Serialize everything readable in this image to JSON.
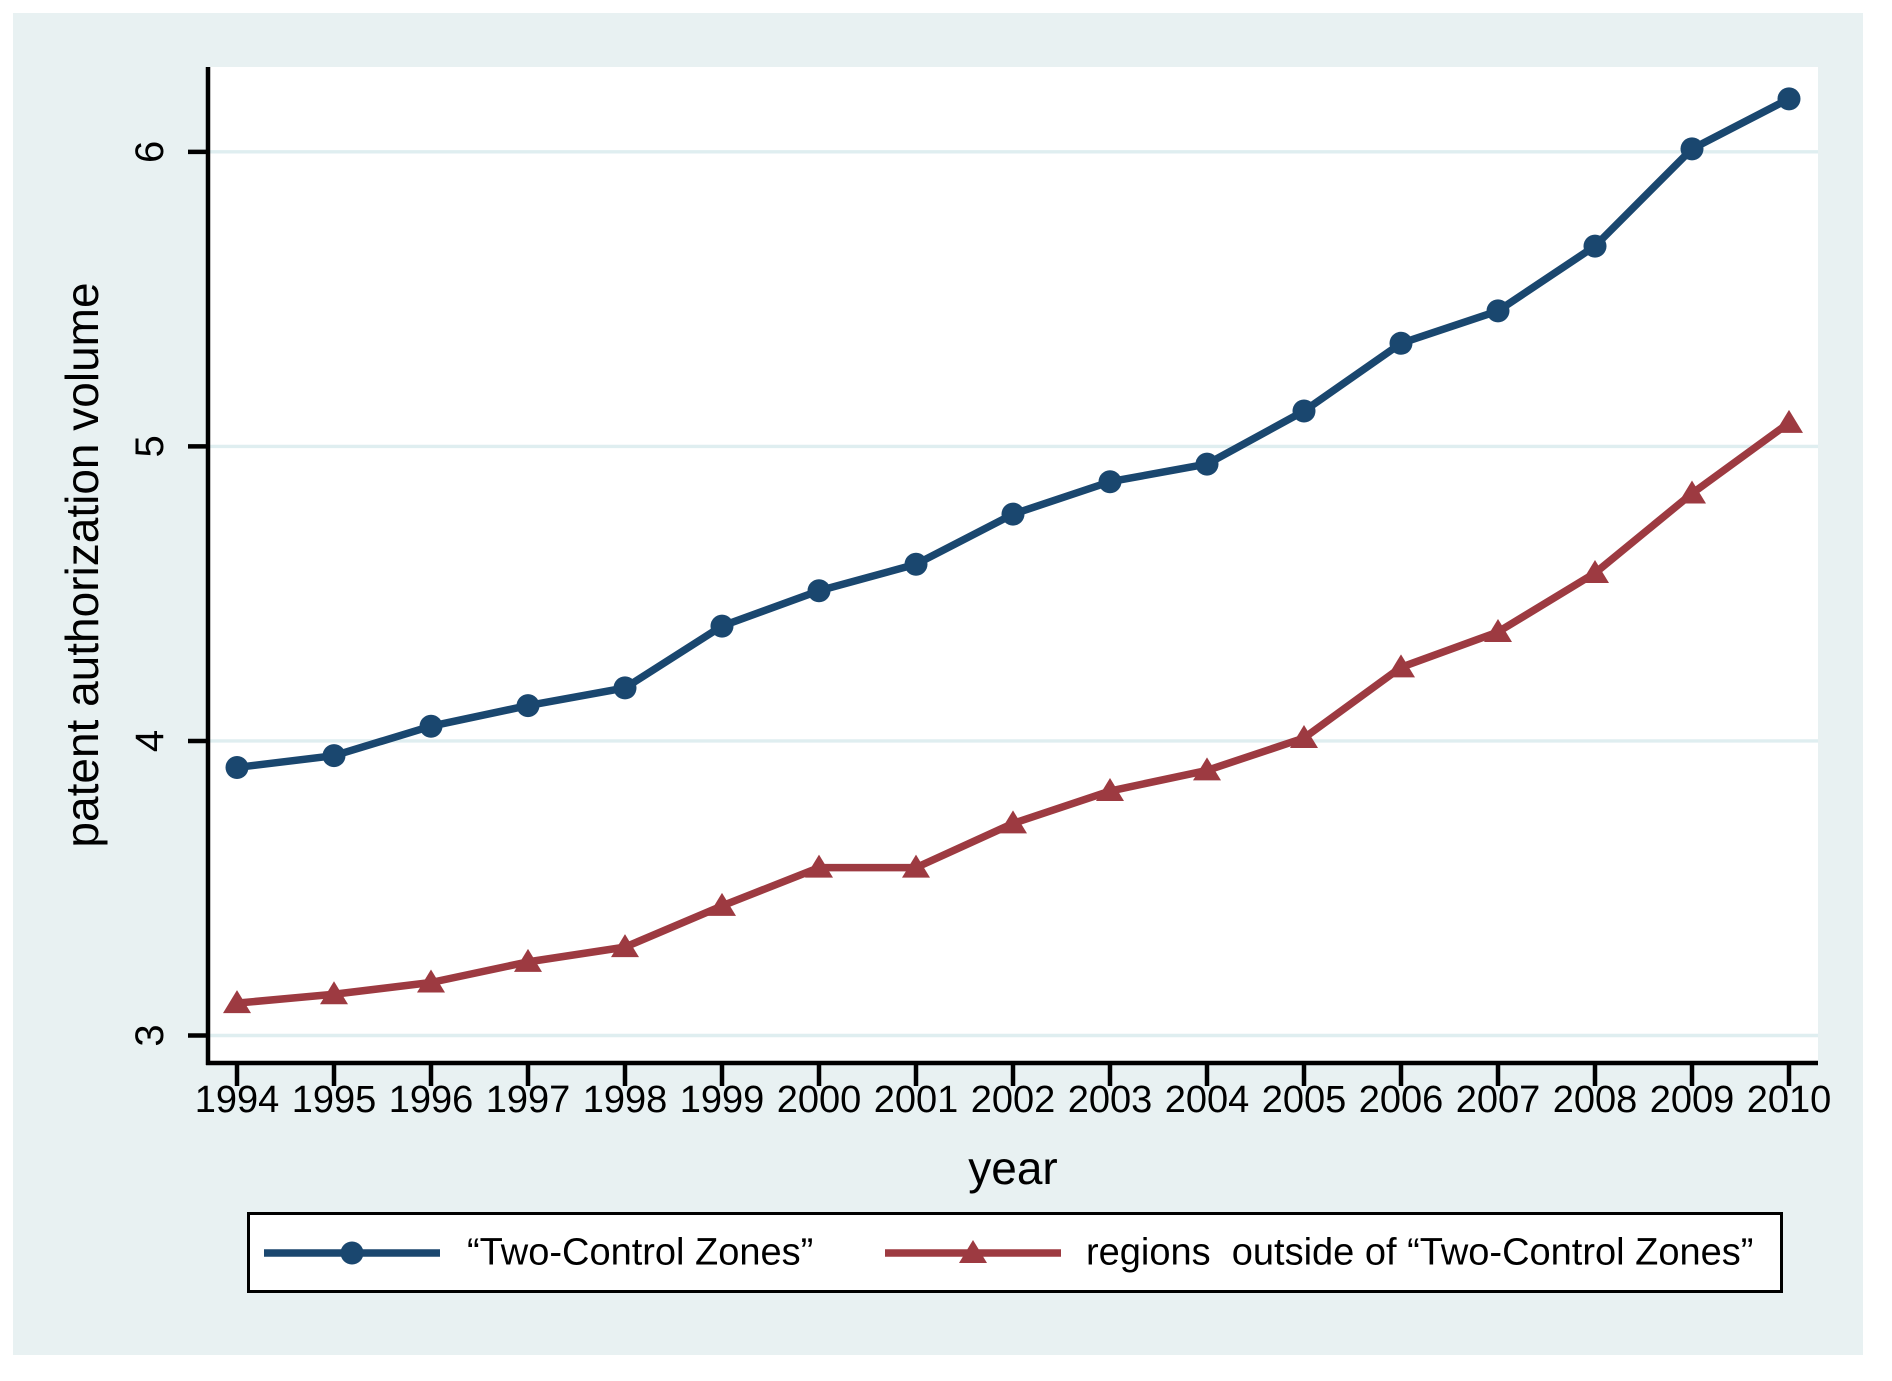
{
  "figure": {
    "background": "#ffffff",
    "canvas_color": "#e8f1f2",
    "plot_background": "#ffffff",
    "grid_color": "#dfeef0",
    "axis_color": "#000000"
  },
  "chart_data": {
    "type": "line",
    "title": "",
    "xlabel": "year",
    "ylabel": "patent authorization volume",
    "x": [
      1994,
      1995,
      1996,
      1997,
      1998,
      1999,
      2000,
      2001,
      2002,
      2003,
      2004,
      2005,
      2006,
      2007,
      2008,
      2009,
      2010
    ],
    "xticks": [
      "1994",
      "1995",
      "1996",
      "1997",
      "1998",
      "1999",
      "2000",
      "2001",
      "2002",
      "2003",
      "2004",
      "2005",
      "2006",
      "2007",
      "2008",
      "2009",
      "2010"
    ],
    "yticks": [
      "3",
      "4",
      "5",
      "6"
    ],
    "ylim": [
      2.906,
      6.288
    ],
    "xlim": [
      1993.7,
      2010.3
    ],
    "grid": "horizontal",
    "legend_position": "bottom",
    "series": [
      {
        "name": "“Two-Control Zones”",
        "color": "#1a476f",
        "marker": "circle",
        "values": [
          3.91,
          3.95,
          4.05,
          4.12,
          4.18,
          4.39,
          4.51,
          4.6,
          4.77,
          4.88,
          4.94,
          5.12,
          5.35,
          5.46,
          5.68,
          6.01,
          6.18
        ]
      },
      {
        "name": "regions  outside of “Two-Control Zones”",
        "color": "#9d3a41",
        "marker": "triangle",
        "values": [
          3.11,
          3.14,
          3.18,
          3.25,
          3.3,
          3.44,
          3.57,
          3.57,
          3.72,
          3.83,
          3.9,
          4.01,
          4.25,
          4.37,
          4.57,
          4.84,
          5.08
        ]
      }
    ]
  }
}
